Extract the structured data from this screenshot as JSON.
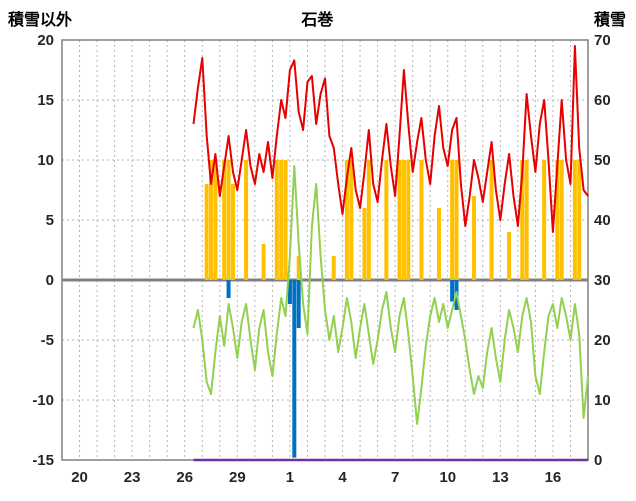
{
  "header": {
    "left_axis_title": "積雪以外",
    "station_title": "石巻",
    "right_axis_title": "積雪"
  },
  "chart_data": {
    "type": "line",
    "title": "石巻",
    "left_axis": {
      "title": "積雪以外",
      "min": -15,
      "max": 20,
      "ticks": [
        20,
        15,
        10,
        5,
        0,
        -5,
        -10,
        -15
      ]
    },
    "right_axis": {
      "title": "積雪",
      "min": 0,
      "max": 70,
      "ticks": [
        70,
        60,
        50,
        40,
        30,
        20,
        10,
        0
      ]
    },
    "x_axis": {
      "min": 0,
      "max": 30,
      "gridline_every": 1,
      "tick_positions": [
        1,
        4,
        7,
        10,
        13,
        16,
        19,
        22,
        25,
        28
      ],
      "tick_labels": [
        "20",
        "23",
        "26",
        "29",
        "1",
        "4",
        "7",
        "10",
        "13",
        "16"
      ]
    },
    "colors": {
      "grid": "#b3b3b3",
      "axis": "#808080",
      "zero_line": "#808080",
      "text": "#262626",
      "background": "#ffffff"
    },
    "series": [
      {
        "name": "yellow-bars",
        "type": "bar",
        "axis": "left",
        "color": "#ffc000",
        "x_start": 7.5,
        "x_step": 0.25,
        "values": [
          0,
          0,
          0,
          8,
          10,
          10,
          0,
          10,
          10,
          8,
          0,
          0,
          10,
          0,
          0,
          0,
          3,
          0,
          0,
          10,
          10,
          10,
          0,
          0,
          2,
          0,
          0,
          0,
          0,
          0,
          0,
          0,
          2,
          0,
          0,
          10,
          10,
          0,
          0,
          6,
          10,
          0,
          0,
          0,
          10,
          0,
          0,
          10,
          10,
          10,
          0,
          0,
          10,
          0,
          0,
          0,
          6,
          0,
          0,
          10,
          10,
          0,
          0,
          0,
          7,
          0,
          0,
          0,
          10,
          0,
          0,
          0,
          4,
          0,
          0,
          10,
          10,
          0,
          0,
          0,
          10,
          0,
          0,
          10,
          10,
          0,
          0,
          10,
          10,
          0,
          0
        ]
      },
      {
        "name": "blue-bars",
        "type": "bar",
        "axis": "left",
        "color": "#0070c0",
        "x_start": 7.5,
        "x_step": 0.25,
        "values": [
          0,
          0,
          0,
          0,
          0,
          0,
          0,
          0,
          -1.5,
          0,
          0,
          0,
          0,
          0,
          0,
          0,
          0,
          0,
          0,
          0,
          0,
          0,
          -2,
          -14.8,
          -4,
          0,
          0,
          0,
          0,
          0,
          0,
          0,
          0,
          0,
          0,
          0,
          0,
          0,
          0,
          0,
          0,
          0,
          0,
          0,
          0,
          0,
          0,
          0,
          0,
          0,
          0,
          0,
          0,
          0,
          0,
          0,
          0,
          0,
          0,
          -1.8,
          -2.5,
          0,
          0,
          0,
          0,
          0,
          0,
          0,
          0,
          0,
          0,
          0,
          0,
          0,
          0,
          0,
          0,
          0,
          0,
          0,
          0,
          0,
          0,
          0,
          0,
          0,
          0,
          0,
          0,
          0,
          0
        ]
      },
      {
        "name": "snow-depth-purple",
        "type": "line",
        "axis": "right",
        "color": "#7030a0",
        "width": 2.5,
        "x": [
          7.5,
          30
        ],
        "values": [
          0,
          0
        ]
      },
      {
        "name": "green-line",
        "type": "line",
        "axis": "left",
        "color": "#92d050",
        "width": 2,
        "x_start": 7.5,
        "x_step": 0.25,
        "values": [
          -4,
          -2.5,
          -5,
          -8.5,
          -9.5,
          -6,
          -3,
          -5.5,
          -2,
          -4,
          -6.5,
          -3.5,
          -2,
          -5,
          -7.5,
          -4,
          -2.5,
          -6,
          -8,
          -4.5,
          -1.5,
          -3,
          2,
          9.5,
          3,
          -2,
          -4.5,
          4.5,
          8,
          2,
          -2.5,
          -5,
          -3,
          -6,
          -4,
          -1.5,
          -3.5,
          -6.5,
          -4,
          -2,
          -4.5,
          -7,
          -5,
          -2.5,
          -1,
          -4,
          -6,
          -3,
          -1.5,
          -4.5,
          -8,
          -12,
          -9,
          -5.5,
          -3,
          -1.5,
          -3.5,
          -2,
          -4,
          -2.5,
          -1,
          -3,
          -5,
          -7.5,
          -9.5,
          -8,
          -9,
          -6,
          -4,
          -6.5,
          -8.5,
          -5,
          -2.5,
          -4,
          -6,
          -3,
          -1.5,
          -3.5,
          -8,
          -9.5,
          -6,
          -3,
          -2,
          -4,
          -1.5,
          -3,
          -5,
          -2,
          -4.5,
          -11.5,
          -8
        ]
      },
      {
        "name": "red-line",
        "type": "line",
        "axis": "left",
        "color": "#e60000",
        "width": 2,
        "x_start": 7.5,
        "x_step": 0.25,
        "values": [
          13,
          16,
          18.5,
          12,
          8,
          10.5,
          7,
          9.5,
          12,
          9,
          7.5,
          10,
          12.5,
          9.5,
          8,
          10.5,
          9,
          11.5,
          8.5,
          12,
          15,
          13.5,
          17.5,
          18.3,
          14,
          12.5,
          16.5,
          17,
          13,
          15.5,
          16.8,
          12,
          11,
          8,
          5.5,
          8.5,
          11,
          7.5,
          6,
          9,
          12.5,
          8,
          6.5,
          10,
          13,
          9.5,
          7,
          12,
          17.5,
          13,
          9,
          11.5,
          13.5,
          10,
          8,
          12,
          14.5,
          11,
          9.5,
          12.5,
          13.5,
          8,
          4.5,
          7,
          10,
          8.5,
          6.5,
          9,
          11.5,
          7.5,
          5,
          8,
          10.5,
          7,
          4.5,
          9,
          15.5,
          12,
          9,
          13,
          15,
          10,
          4,
          9.5,
          15,
          10,
          8,
          19.5,
          11,
          7.5,
          7
        ]
      }
    ]
  }
}
